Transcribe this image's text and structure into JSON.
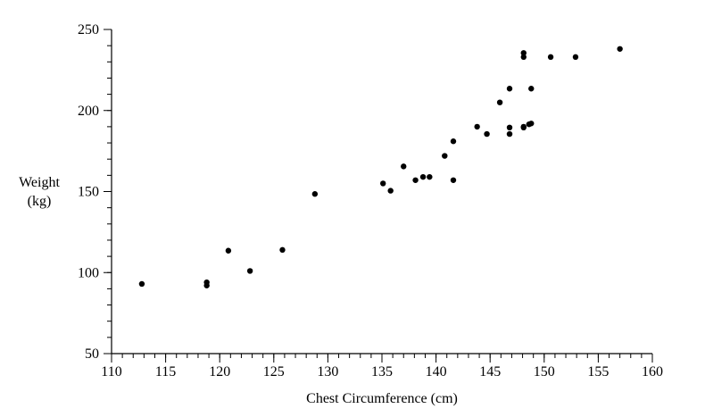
{
  "chart_data": {
    "type": "scatter",
    "xlabel": "Chest Circumference (cm)",
    "ylabel_lines": [
      "Weight",
      "(kg)"
    ],
    "xlim": [
      110,
      160
    ],
    "ylim": [
      50,
      250
    ],
    "x_ticks": [
      110,
      115,
      120,
      125,
      130,
      135,
      140,
      145,
      150,
      155,
      160
    ],
    "y_ticks": [
      50,
      100,
      150,
      200,
      250
    ],
    "x_minor_step": 1,
    "y_minor_step": 10,
    "grid": false,
    "colors": {
      "points": "#000000",
      "axis": "#000000"
    },
    "series": [
      {
        "points": [
          [
            112.8,
            93
          ],
          [
            118.8,
            94
          ],
          [
            118.8,
            92
          ],
          [
            120.8,
            113.5
          ],
          [
            122.8,
            101
          ],
          [
            125.8,
            114
          ],
          [
            128.8,
            148.5
          ],
          [
            135.1,
            155
          ],
          [
            135.8,
            150.5
          ],
          [
            137.0,
            165.5
          ],
          [
            138.1,
            157
          ],
          [
            138.8,
            159
          ],
          [
            139.4,
            159
          ],
          [
            140.8,
            172
          ],
          [
            141.6,
            181
          ],
          [
            141.6,
            157
          ],
          [
            143.8,
            190
          ],
          [
            144.7,
            185.5
          ],
          [
            145.9,
            205
          ],
          [
            146.8,
            213.5
          ],
          [
            146.8,
            189.5
          ],
          [
            146.8,
            185.5
          ],
          [
            148.1,
            235.5
          ],
          [
            148.1,
            233
          ],
          [
            148.1,
            190
          ],
          [
            148.1,
            189.5
          ],
          [
            148.6,
            191.5
          ],
          [
            148.8,
            213.5
          ],
          [
            148.8,
            192
          ],
          [
            150.6,
            233
          ],
          [
            152.9,
            233
          ],
          [
            157.0,
            238
          ]
        ]
      }
    ]
  }
}
